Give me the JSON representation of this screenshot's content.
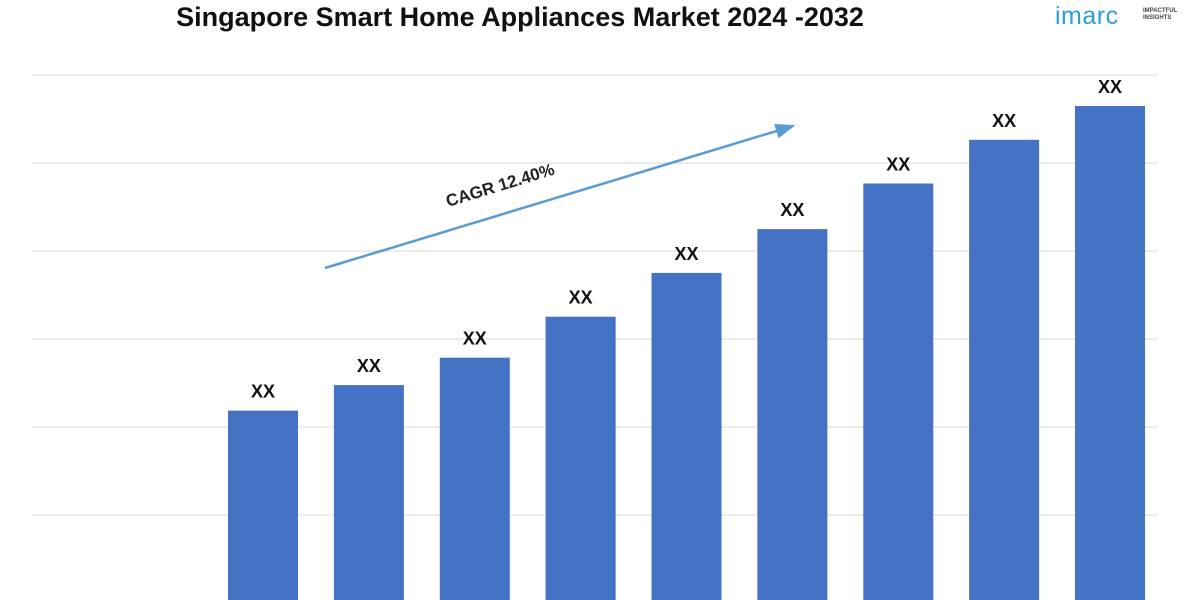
{
  "chart_data": {
    "type": "bar",
    "title": "Singapore Smart Home Appliances Market 2024 -2032",
    "categories": [
      "",
      "",
      "",
      "",
      "",
      "",
      "",
      "",
      ""
    ],
    "values": [
      21.2,
      24.0,
      27.0,
      31.5,
      36.3,
      41.1,
      46.1,
      50.9,
      54.6
    ],
    "data_labels": [
      "XX",
      "XX",
      "XX",
      "XX",
      "XX",
      "XX",
      "XX",
      "XX",
      "XX"
    ],
    "ylim": [
      0,
      58
    ],
    "grid": true,
    "bar_color": "#4472c4",
    "annotation": {
      "text": "CAGR 12.40%",
      "arrow_color": "#5b9bd5"
    }
  },
  "logo": {
    "name": "imarc",
    "tagline": "IMPACTFUL INSIGHTS",
    "color": "#2a9fd8"
  }
}
